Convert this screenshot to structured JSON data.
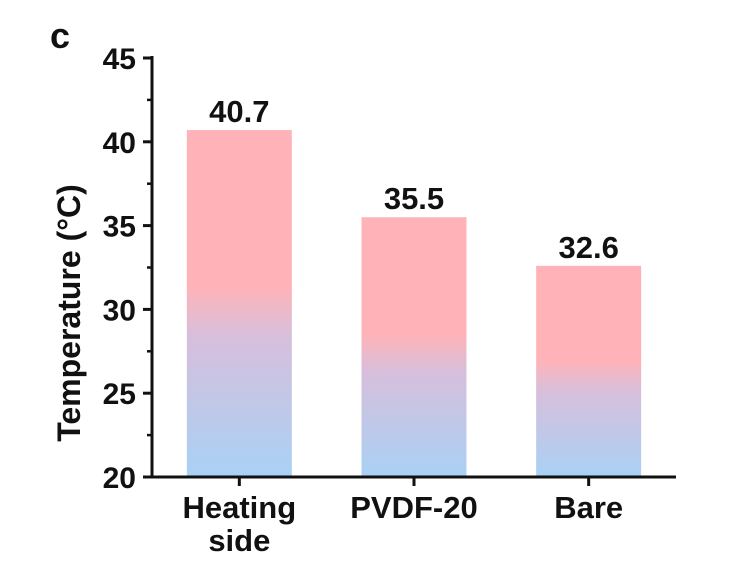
{
  "panel_label": "c",
  "chart_data": {
    "type": "bar",
    "title": "",
    "xlabel": "",
    "ylabel": "Temperature (°C)",
    "ylim": [
      20,
      45
    ],
    "yticks": [
      20,
      25,
      30,
      35,
      40,
      45
    ],
    "categories": [
      [
        "Heating",
        "side"
      ],
      [
        "PVDF-20"
      ],
      [
        "Bare"
      ]
    ],
    "values": [
      40.7,
      35.5,
      32.6
    ],
    "value_labels": [
      "40.7",
      "35.5",
      "32.6"
    ],
    "bar_gradient": {
      "top": "#ffb3b8",
      "middle": "#d6bfdc",
      "bottom": "#a9d1f5"
    },
    "grid": false,
    "legend": "none"
  }
}
